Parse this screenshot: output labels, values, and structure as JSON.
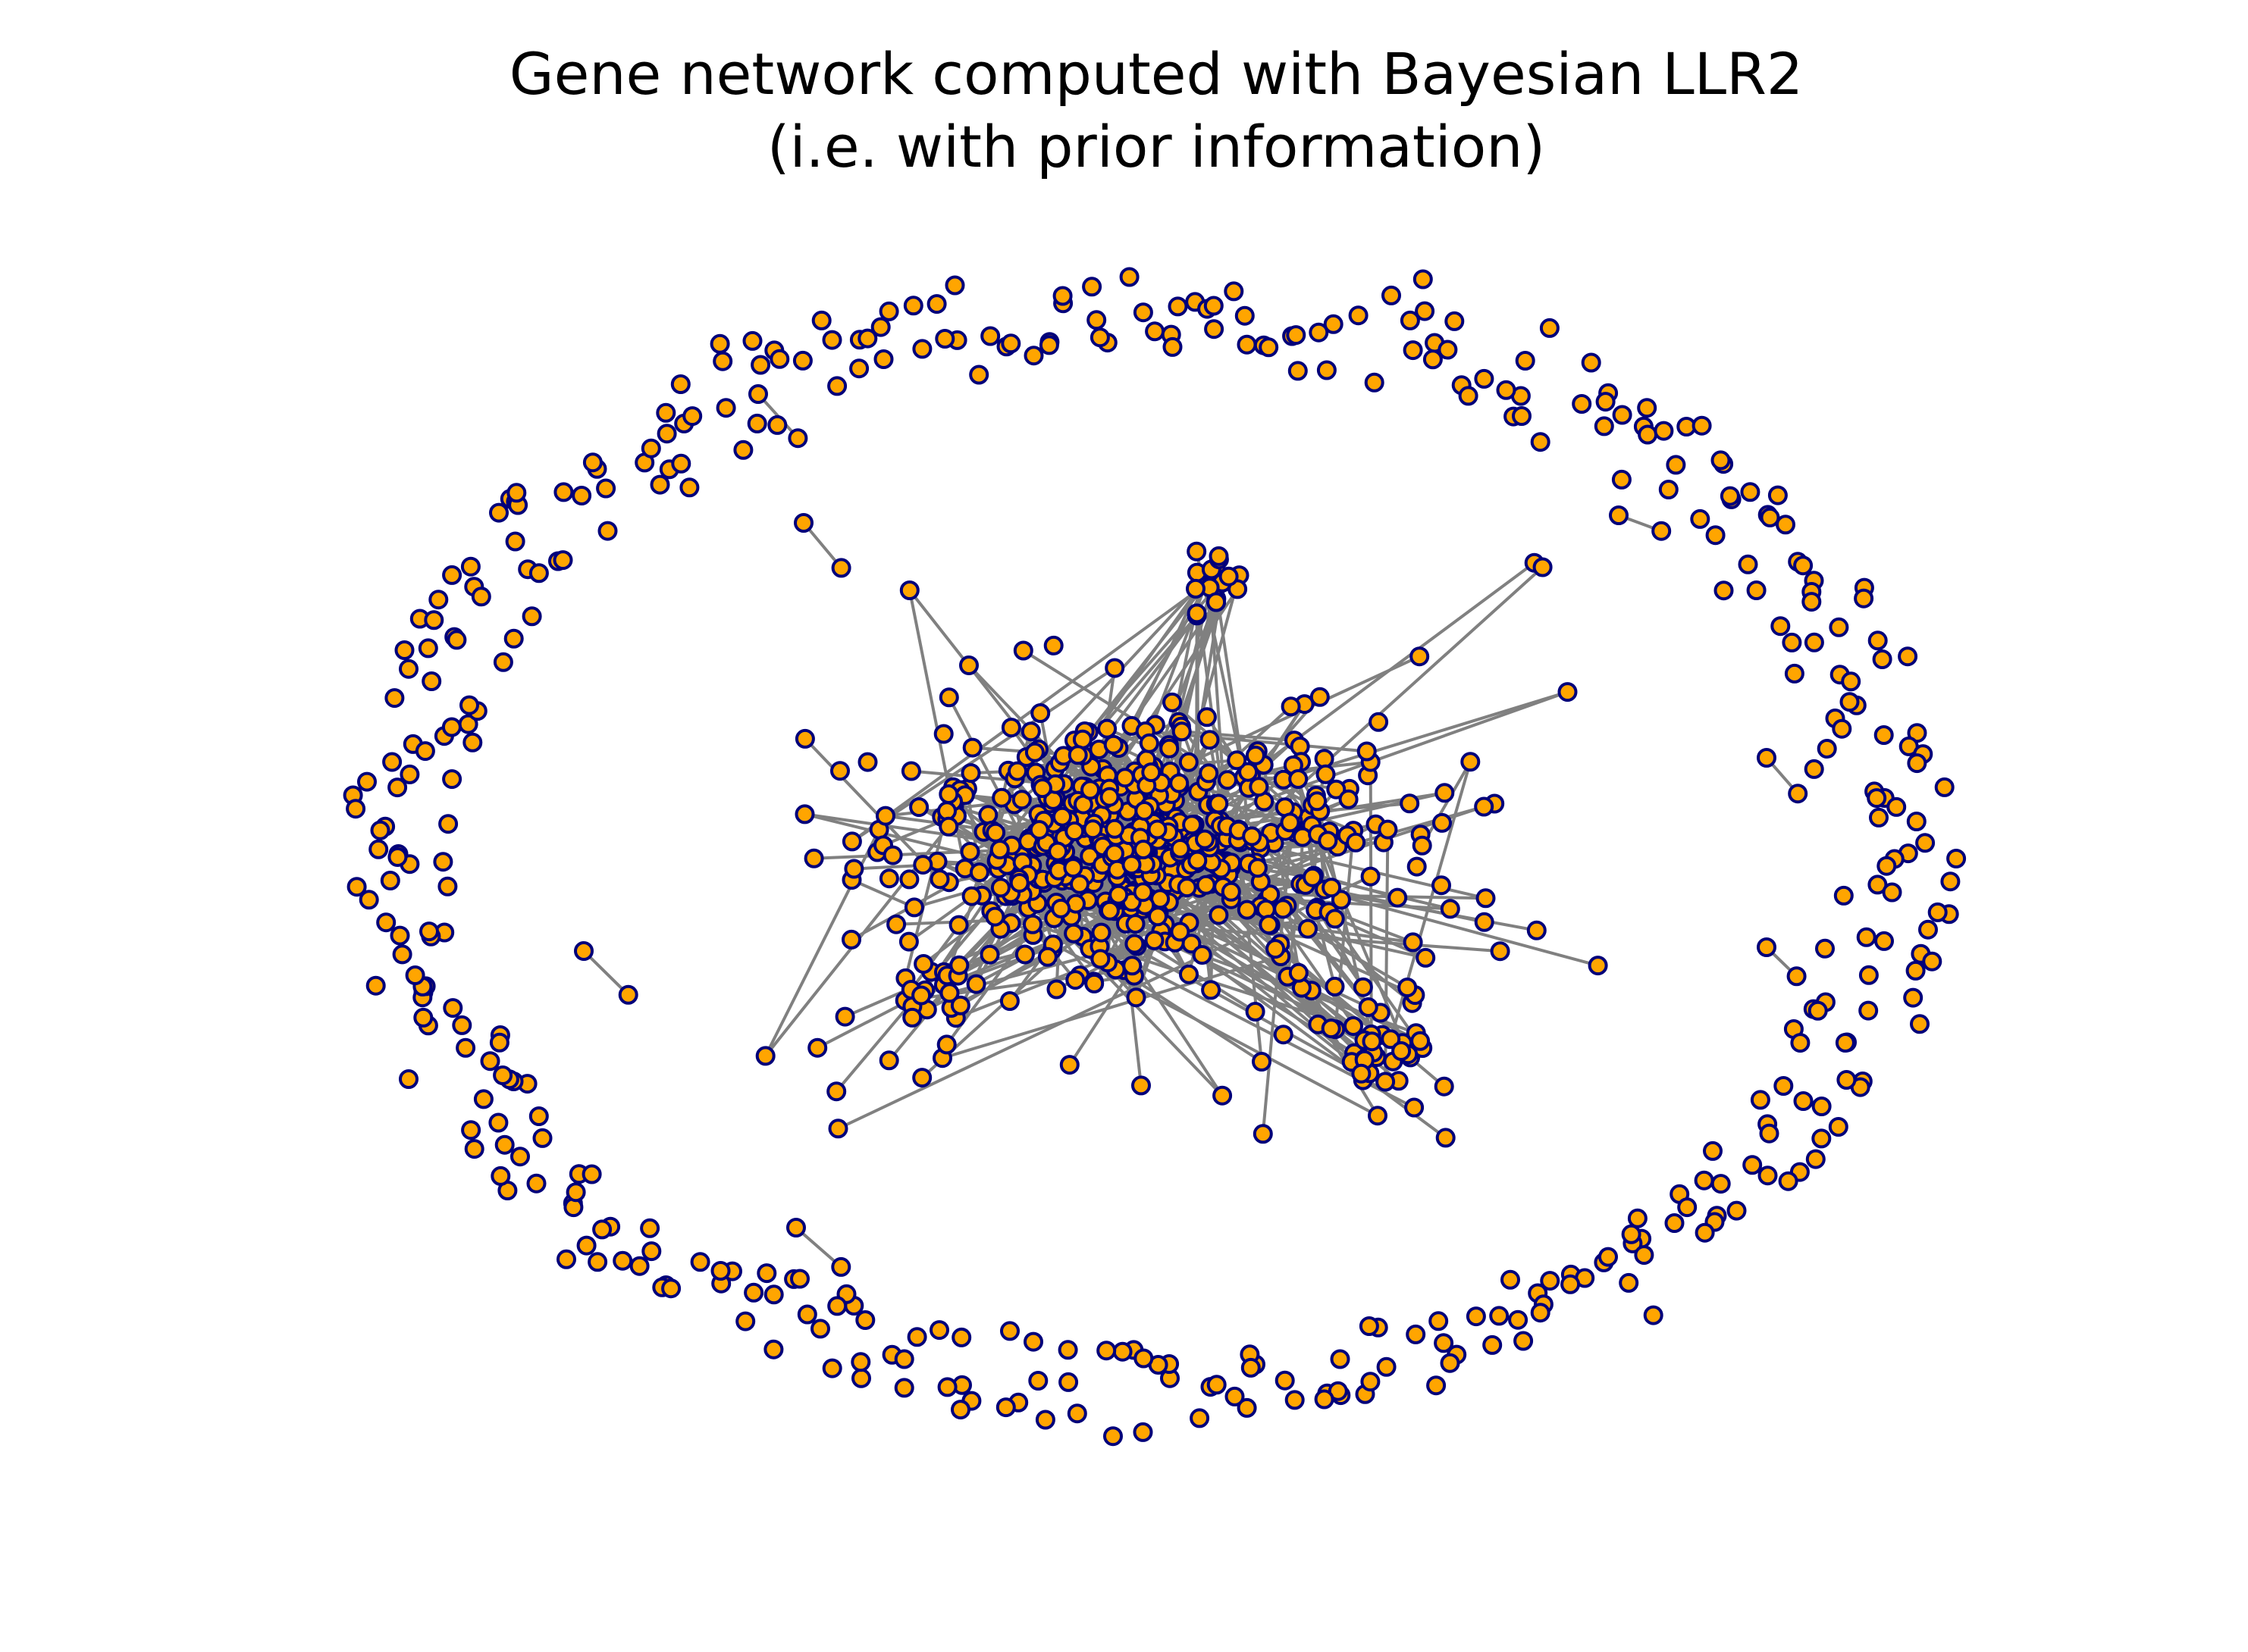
{
  "figure": {
    "title_line1": "Gene network computed with Bayesian LLR2",
    "title_line2": "(i.e. with prior information)"
  },
  "colors": {
    "background": "#ffffff",
    "node_fill": "#ffa500",
    "node_stroke": "#00007a",
    "edge": "#808080",
    "title_text": "#000000"
  },
  "diagram": {
    "type": "network",
    "layout": "force-directed; central connected cluster surrounded by a ring of isolated nodes",
    "nodes_shown": "many",
    "node_shape": "circle",
    "edge_style": "gray straight lines",
    "axes": "off"
  }
}
